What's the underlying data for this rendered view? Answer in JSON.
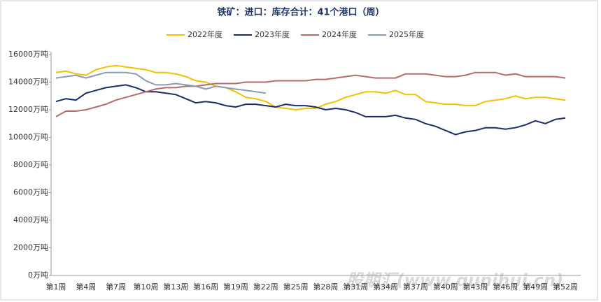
{
  "chart_data": {
    "type": "line",
    "title": "铁矿：进口：库存合计：41个港口（周）",
    "watermark": "股期汇(www.qunihui.cn)",
    "categories": [
      "第1周",
      null,
      null,
      "第4周",
      null,
      null,
      "第7周",
      null,
      null,
      "第10周",
      null,
      null,
      "第13周",
      null,
      null,
      "第16周",
      null,
      null,
      "第19周",
      null,
      null,
      "第22周",
      null,
      null,
      "第25周",
      null,
      null,
      "第28周",
      null,
      null,
      "第31周",
      null,
      null,
      "第34周",
      null,
      null,
      "第37周",
      null,
      null,
      "第40周",
      null,
      null,
      "第43周",
      null,
      null,
      "第46周",
      null,
      null,
      "第49周",
      null,
      null,
      "第52周"
    ],
    "series": [
      {
        "name": "2022年度",
        "color": "#f5c000",
        "values": [
          14700,
          14800,
          14600,
          14500,
          14900,
          15100,
          15200,
          15100,
          15000,
          14900,
          14700,
          14700,
          14600,
          14400,
          14100,
          14000,
          13700,
          13600,
          13300,
          12900,
          12800,
          12600,
          12200,
          12100,
          12000,
          12100,
          12100,
          12400,
          12600,
          12900,
          13100,
          13300,
          13300,
          13200,
          13400,
          13100,
          13100,
          12600,
          12500,
          12400,
          12400,
          12300,
          12300,
          12600,
          12700,
          12800,
          13000,
          12800,
          12900,
          12900,
          12800,
          12700
        ]
      },
      {
        "name": "2023年度",
        "color": "#1a2d6b",
        "values": [
          12600,
          12800,
          12700,
          13200,
          13400,
          13600,
          13700,
          13800,
          13600,
          13300,
          13300,
          13200,
          13100,
          12800,
          12500,
          12600,
          12500,
          12300,
          12200,
          12400,
          12400,
          12300,
          12200,
          12400,
          12300,
          12300,
          12200,
          12000,
          12100,
          12000,
          11800,
          11500,
          11500,
          11500,
          11600,
          11400,
          11300,
          11000,
          10800,
          10500,
          10200,
          10400,
          10500,
          10700,
          10700,
          10600,
          10700,
          10900,
          11200,
          11000,
          11300,
          11400
        ]
      },
      {
        "name": "2024年度",
        "color": "#b86a6a",
        "values": [
          11500,
          11900,
          11900,
          12000,
          12200,
          12400,
          12700,
          12900,
          13100,
          13300,
          13500,
          13600,
          13600,
          13700,
          13700,
          13800,
          13900,
          13900,
          13900,
          14000,
          14000,
          14000,
          14100,
          14100,
          14100,
          14100,
          14200,
          14200,
          14300,
          14400,
          14500,
          14400,
          14300,
          14300,
          14300,
          14600,
          14600,
          14600,
          14500,
          14400,
          14400,
          14500,
          14700,
          14700,
          14700,
          14500,
          14600,
          14400,
          14400,
          14400,
          14400,
          14300
        ]
      },
      {
        "name": "2025年度",
        "color": "#8a9bb8",
        "values": [
          14300,
          14400,
          14500,
          14300,
          14500,
          14700,
          14700,
          14700,
          14600,
          14100,
          13800,
          13800,
          13900,
          13800,
          13700,
          13500,
          13700,
          13600,
          13500,
          13400,
          13300,
          13200,
          null,
          null,
          null,
          null,
          null,
          null,
          null,
          null,
          null,
          null,
          null,
          null,
          null,
          null,
          null,
          null,
          null,
          null,
          null,
          null,
          null,
          null,
          null,
          null,
          null,
          null,
          null,
          null,
          null,
          null
        ]
      }
    ],
    "ylim": [
      0,
      16000
    ],
    "yticks": [
      {
        "value": 0,
        "label": "0万吨"
      },
      {
        "value": 2000,
        "label": "2000万吨"
      },
      {
        "value": 4000,
        "label": "4000万吨"
      },
      {
        "value": 6000,
        "label": "6000万吨"
      },
      {
        "value": 8000,
        "label": "8000万吨"
      },
      {
        "value": 10000,
        "label": "10000万吨"
      },
      {
        "value": 12000,
        "label": "12000万吨"
      },
      {
        "value": 14000,
        "label": "14000万吨"
      },
      {
        "value": 16000,
        "label": "16000万吨"
      }
    ],
    "grid": false
  }
}
